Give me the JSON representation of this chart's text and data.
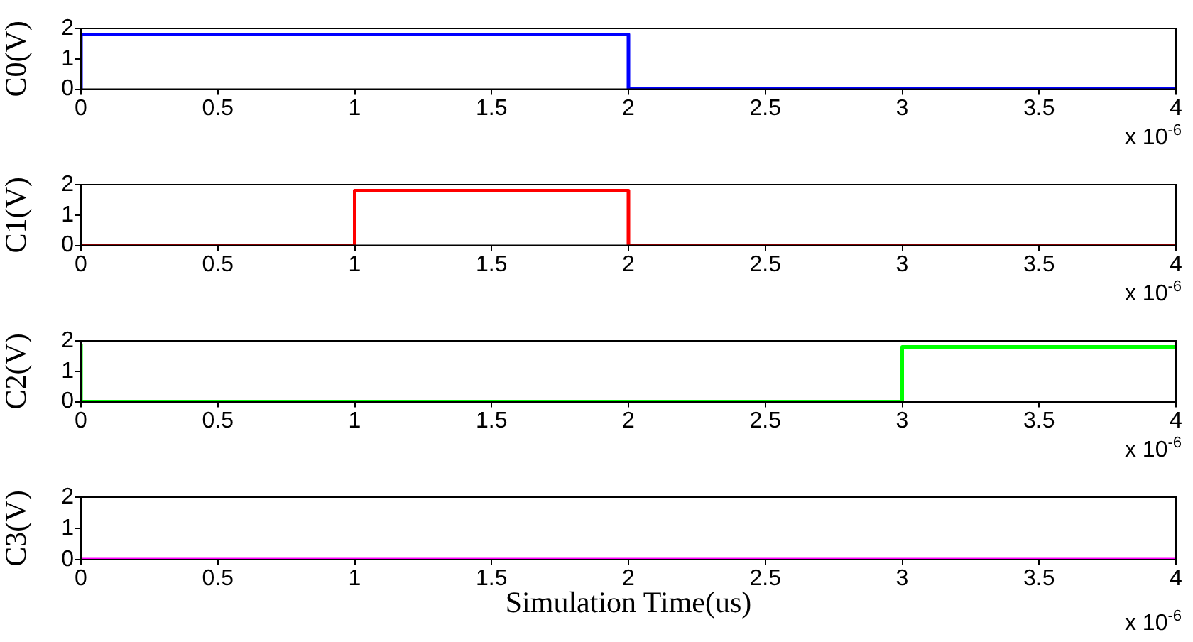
{
  "chart_data": [
    {
      "type": "step",
      "ylabel": "C0(V)",
      "xlim": [
        0,
        4
      ],
      "xticks": [
        0,
        0.5,
        1,
        1.5,
        2,
        2.5,
        3,
        3.5,
        4
      ],
      "ylim": [
        0,
        2
      ],
      "yticks": [
        0,
        1,
        2
      ],
      "grid": false,
      "annotations": [
        "x 10$^{-6}$"
      ],
      "series": [
        {
          "color": "#0000ff",
          "x": [
            0,
            0,
            2,
            2,
            4
          ],
          "values": [
            0,
            1.8,
            1.8,
            0,
            0
          ]
        }
      ]
    },
    {
      "type": "step",
      "ylabel": "C1(V)",
      "xlim": [
        0,
        4
      ],
      "xticks": [
        0,
        0.5,
        1,
        1.5,
        2,
        2.5,
        3,
        3.5,
        4
      ],
      "ylim": [
        0,
        2
      ],
      "yticks": [
        0,
        1,
        2
      ],
      "grid": false,
      "annotations": [
        "x 10$^{-6}$"
      ],
      "series": [
        {
          "color": "#ff0000",
          "x": [
            0,
            1,
            1,
            2,
            2,
            4
          ],
          "values": [
            0,
            0,
            1.8,
            1.8,
            0,
            0
          ]
        }
      ]
    },
    {
      "type": "step",
      "ylabel": "C2(V)",
      "xlim": [
        0,
        4
      ],
      "xticks": [
        0,
        0.5,
        1,
        1.5,
        2,
        2.5,
        3,
        3.5,
        4
      ],
      "ylim": [
        0,
        2
      ],
      "yticks": [
        0,
        1,
        2
      ],
      "grid": false,
      "annotations": [
        "x 10$^{-6}$"
      ],
      "series": [
        {
          "color": "#00ff00",
          "x": [
            0,
            0,
            3,
            3,
            4
          ],
          "values": [
            1.9,
            0,
            0,
            1.8,
            1.8
          ]
        }
      ]
    },
    {
      "type": "step",
      "ylabel": "C3(V)",
      "xlabel": "Simulation Time(us)",
      "xlim": [
        0,
        4
      ],
      "xticks": [
        0,
        0.5,
        1,
        1.5,
        2,
        2.5,
        3,
        3.5,
        4
      ],
      "ylim": [
        0,
        2
      ],
      "yticks": [
        0,
        1,
        2
      ],
      "grid": false,
      "annotations": [
        "x 10$^{-6}$"
      ],
      "series": [
        {
          "color": "#ff00ff",
          "x": [
            0,
            4
          ],
          "values": [
            0,
            0
          ]
        }
      ]
    }
  ]
}
